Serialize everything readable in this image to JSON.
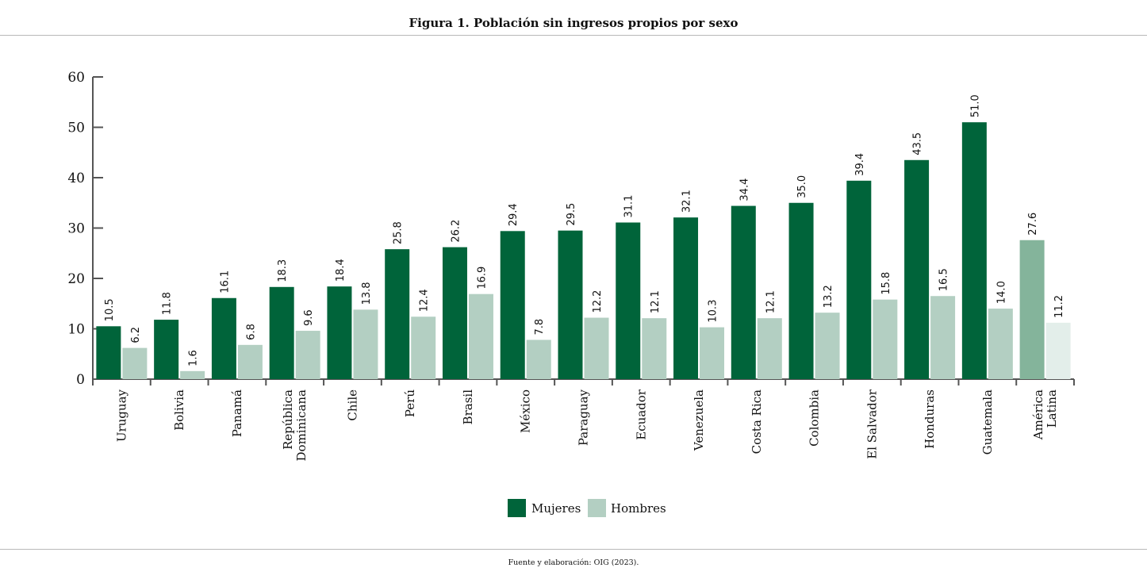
{
  "title": "Figura 1. Población sin ingresos propios por sexo",
  "source": "Fuente y elaboración: OIG (2023).",
  "colors": {
    "mujeres": "#00643a",
    "hombres": "#b3cfc2",
    "mujeres_highlight": "#84b49b",
    "hombres_highlight": "#e3eeea",
    "axis": "#555555",
    "rule": "#b9b9b9"
  },
  "chart_data": {
    "type": "bar",
    "title": "Figura 1. Población sin ingresos propios por sexo",
    "xlabel": "",
    "ylabel": "",
    "ylim": [
      0,
      60
    ],
    "yticks": [
      0,
      10,
      20,
      30,
      40,
      50,
      60
    ],
    "grid": false,
    "legend_position": "bottom-center",
    "categories": [
      [
        "Uruguay"
      ],
      [
        "Bolivia"
      ],
      [
        "Panamá"
      ],
      [
        "República",
        "Dominicana"
      ],
      [
        "Chile"
      ],
      [
        "Perú"
      ],
      [
        "Brasil"
      ],
      [
        "México"
      ],
      [
        "Paraguay"
      ],
      [
        "Ecuador"
      ],
      [
        "Venezuela"
      ],
      [
        "Costa Rica"
      ],
      [
        "Colombia"
      ],
      [
        "El Salvador"
      ],
      [
        "Honduras"
      ],
      [
        "Guatemala"
      ],
      [
        "América",
        "Latina"
      ]
    ],
    "highlight_index": 16,
    "series": [
      {
        "name": "Mujeres",
        "values": [
          10.5,
          11.8,
          16.1,
          18.3,
          18.4,
          25.8,
          26.2,
          29.4,
          29.5,
          31.1,
          32.1,
          34.4,
          35.0,
          39.4,
          43.5,
          51.0,
          27.6
        ],
        "labels": [
          "10.5",
          "11.8",
          "16.1",
          "18.3",
          "18.4",
          "25.8",
          "26.2",
          "29.4",
          "29.5",
          "31.1",
          "32.1",
          "34.4",
          "35.0",
          "39.4",
          "43.5",
          "51.0",
          "27.6"
        ]
      },
      {
        "name": "Hombres",
        "values": [
          6.2,
          1.6,
          6.8,
          9.6,
          13.8,
          12.4,
          16.9,
          7.8,
          12.2,
          12.1,
          10.3,
          12.1,
          13.2,
          15.8,
          16.5,
          14.0,
          11.2
        ],
        "labels": [
          "6.2",
          "1.6",
          "6.8",
          "9.6",
          "13.8",
          "12.4",
          "16.9",
          "7.8",
          "12.2",
          "12.1",
          "10.3",
          "12.1",
          "13.2",
          "15.8",
          "16.5",
          "14.0",
          "11.2"
        ]
      }
    ]
  }
}
